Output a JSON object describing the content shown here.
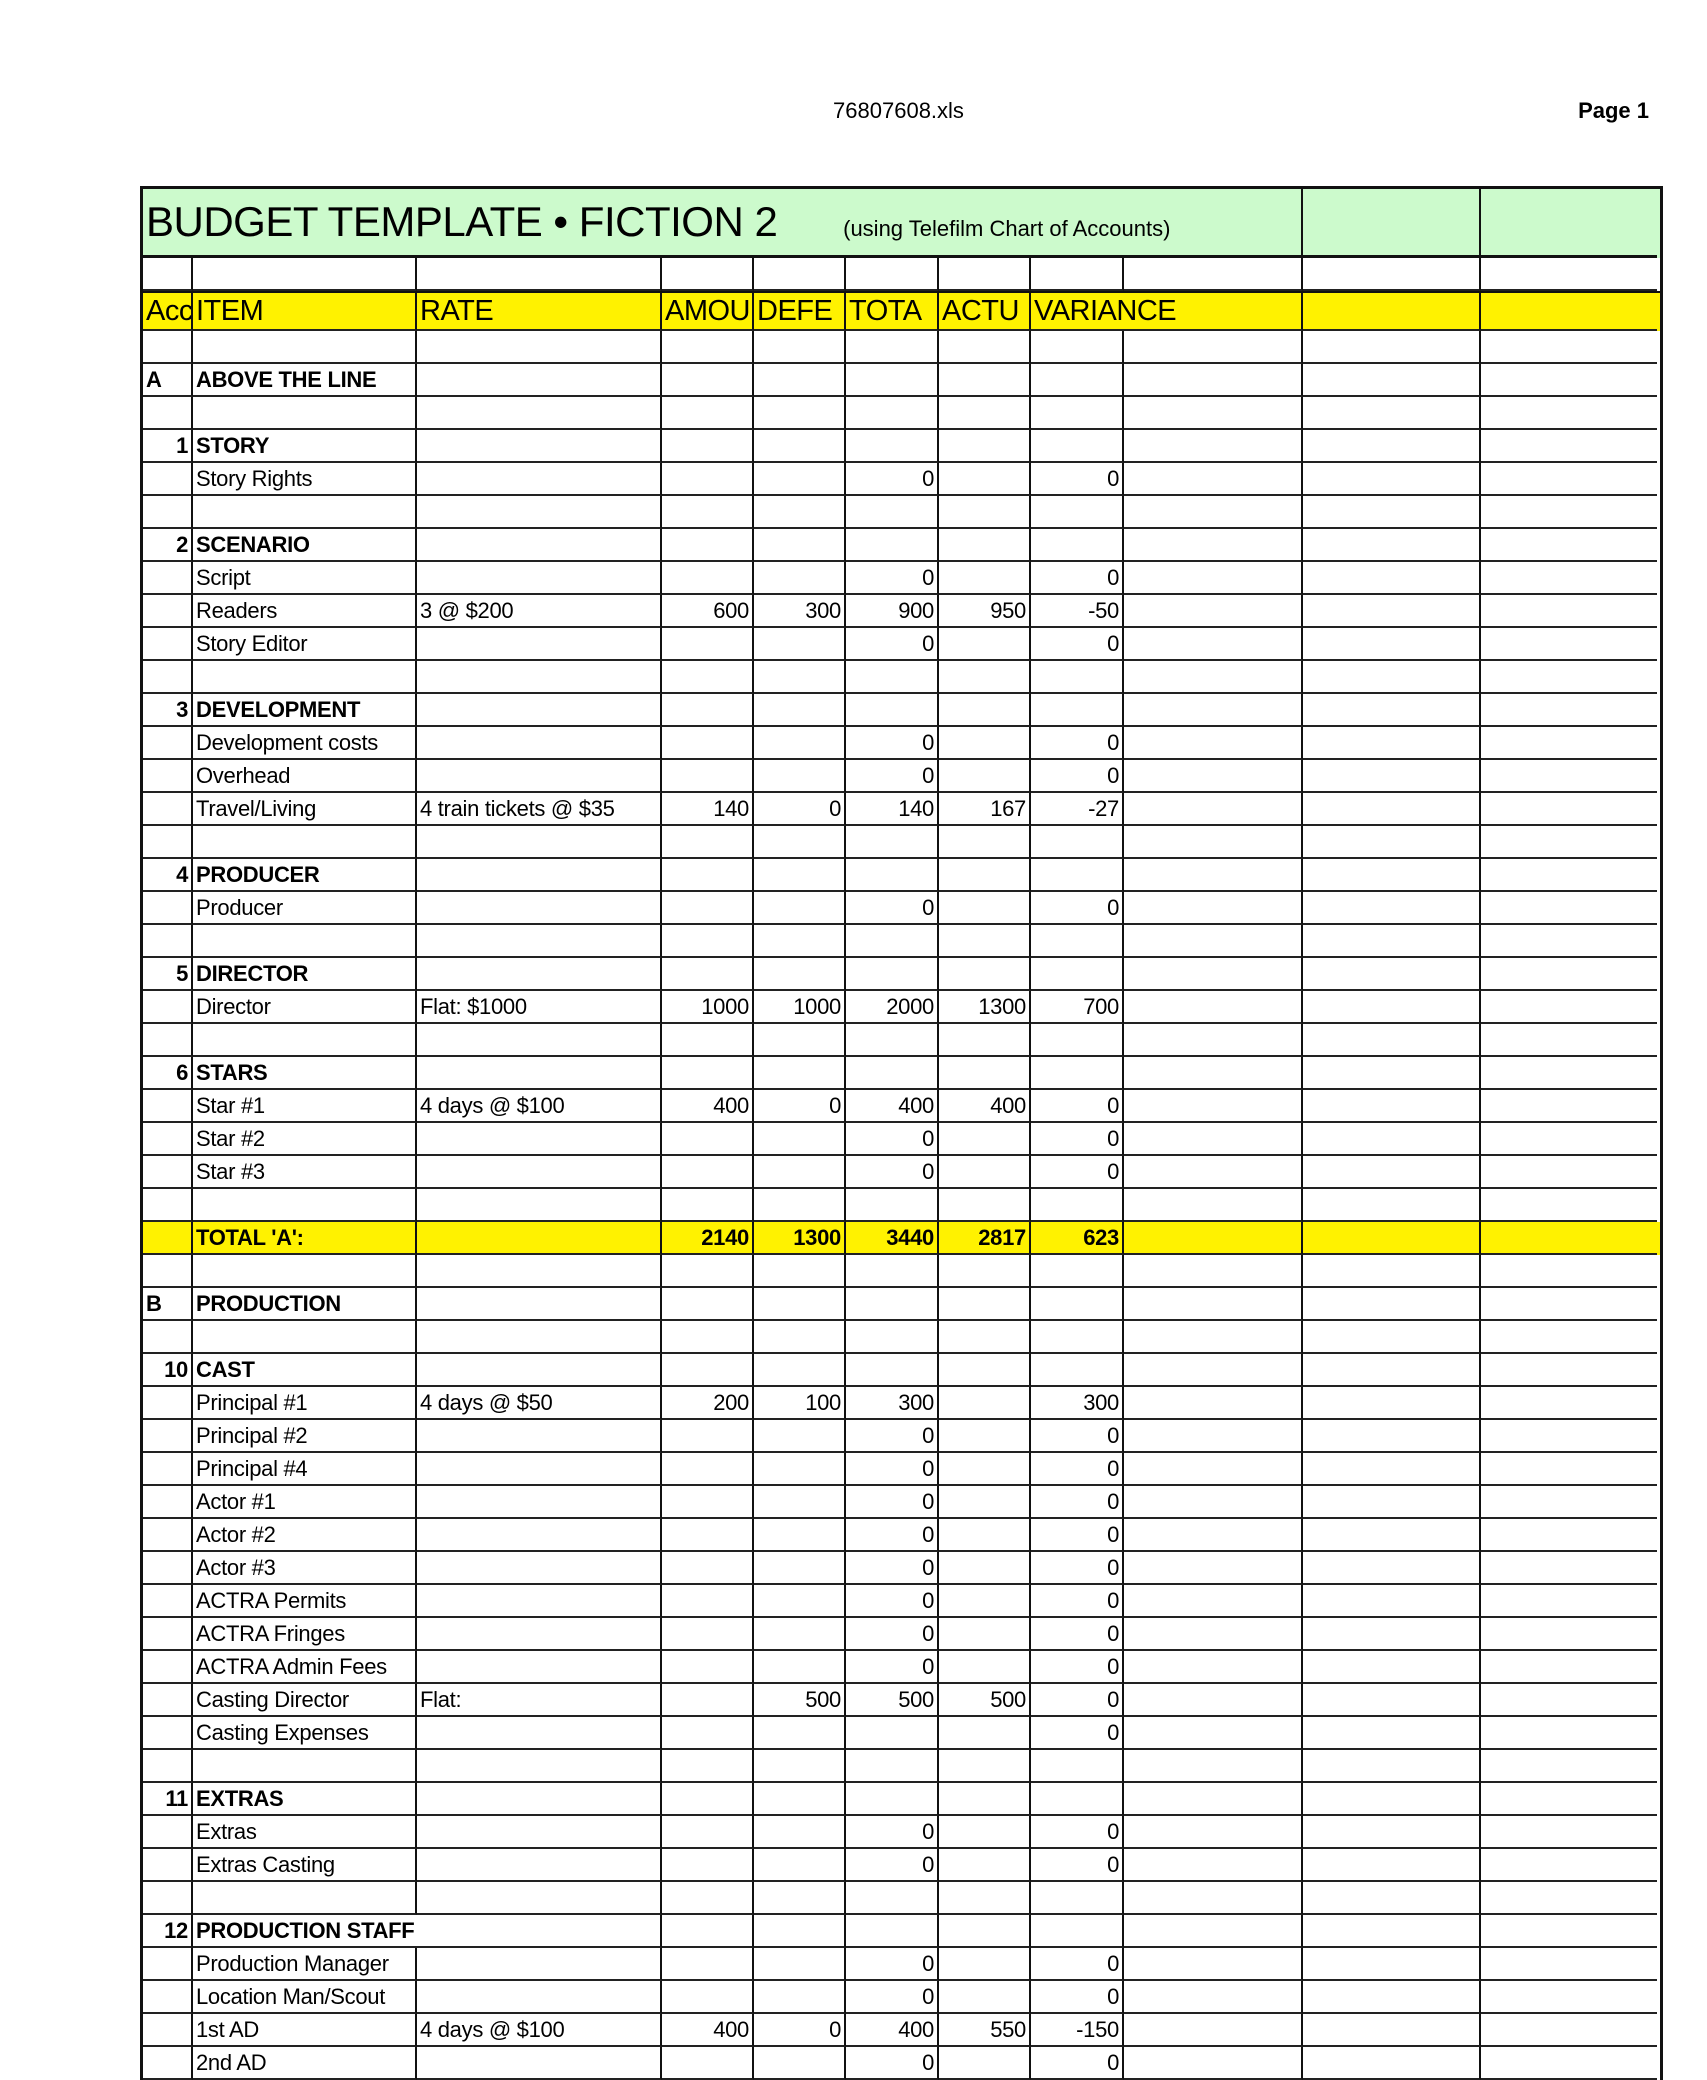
{
  "page_header": {
    "file_name": "76807608.xls",
    "page": "Page 1"
  },
  "sheet": {
    "title": "BUDGET TEMPLATE • FICTION 2",
    "subtitle": "(using Telefilm Chart of Accounts)",
    "colors": {
      "title_bg": "#ccfacc",
      "header_bg": "#fff200",
      "total_bg": "#fff200"
    },
    "columns": [
      "Acc",
      "ITEM",
      "RATE",
      "AMOU",
      "DEFE",
      "TOTA",
      "ACTU",
      "VARIANCE"
    ],
    "rows": [
      {
        "type": "blank"
      },
      {
        "type": "section",
        "acct": "A",
        "item": "ABOVE THE LINE"
      },
      {
        "type": "blank"
      },
      {
        "type": "heading",
        "acct": "1",
        "item": "STORY"
      },
      {
        "type": "line",
        "item": "Story Rights",
        "total": "0",
        "variance": "0"
      },
      {
        "type": "blank"
      },
      {
        "type": "heading",
        "acct": "2",
        "item": "SCENARIO"
      },
      {
        "type": "line",
        "item": "Script",
        "total": "0",
        "variance": "0"
      },
      {
        "type": "line",
        "item": "Readers",
        "rate": "3 @ $200",
        "amount": "600",
        "deferred": "300",
        "total": "900",
        "actual": "950",
        "variance": "-50"
      },
      {
        "type": "line",
        "item": "Story Editor",
        "total": "0",
        "variance": "0"
      },
      {
        "type": "blank"
      },
      {
        "type": "heading",
        "acct": "3",
        "item": "DEVELOPMENT"
      },
      {
        "type": "line",
        "item": "Development costs",
        "total": "0",
        "variance": "0"
      },
      {
        "type": "line",
        "item": "Overhead",
        "total": "0",
        "variance": "0"
      },
      {
        "type": "line",
        "item": "Travel/Living",
        "rate": "4 train tickets @ $35",
        "amount": "140",
        "deferred": "0",
        "total": "140",
        "actual": "167",
        "variance": "-27"
      },
      {
        "type": "blank"
      },
      {
        "type": "heading",
        "acct": "4",
        "item": "PRODUCER"
      },
      {
        "type": "line",
        "item": "Producer",
        "total": "0",
        "variance": "0"
      },
      {
        "type": "blank"
      },
      {
        "type": "heading",
        "acct": "5",
        "item": "DIRECTOR"
      },
      {
        "type": "line",
        "item": "Director",
        "rate": "Flat: $1000",
        "amount": "1000",
        "deferred": "1000",
        "total": "2000",
        "actual": "1300",
        "variance": "700"
      },
      {
        "type": "blank"
      },
      {
        "type": "heading",
        "acct": "6",
        "item": "STARS"
      },
      {
        "type": "line",
        "item": "Star #1",
        "rate": "4 days @ $100",
        "amount": "400",
        "deferred": "0",
        "total": "400",
        "actual": "400",
        "variance": "0"
      },
      {
        "type": "line",
        "item": "Star #2",
        "total": "0",
        "variance": "0"
      },
      {
        "type": "line",
        "item": "Star #3",
        "total": "0",
        "variance": "0"
      },
      {
        "type": "blank"
      },
      {
        "type": "total",
        "item": "TOTAL 'A':",
        "amount": "2140",
        "deferred": "1300",
        "total": "3440",
        "actual": "2817",
        "variance": "623"
      },
      {
        "type": "blank"
      },
      {
        "type": "section",
        "acct": "B",
        "item": "PRODUCTION"
      },
      {
        "type": "blank"
      },
      {
        "type": "heading",
        "acct": "10",
        "item": "CAST"
      },
      {
        "type": "line",
        "item": "Principal #1",
        "rate": "4 days @ $50",
        "amount": "200",
        "deferred": "100",
        "total": "300",
        "variance": "300"
      },
      {
        "type": "line",
        "item": "Principal #2",
        "total": "0",
        "variance": "0"
      },
      {
        "type": "line",
        "item": "Principal #4",
        "total": "0",
        "variance": "0"
      },
      {
        "type": "line",
        "item": "Actor #1",
        "total": "0",
        "variance": "0"
      },
      {
        "type": "line",
        "item": "Actor #2",
        "total": "0",
        "variance": "0"
      },
      {
        "type": "line",
        "item": "Actor #3",
        "total": "0",
        "variance": "0"
      },
      {
        "type": "line",
        "item": "ACTRA Permits",
        "total": "0",
        "variance": "0"
      },
      {
        "type": "line",
        "item": "ACTRA Fringes",
        "total": "0",
        "variance": "0"
      },
      {
        "type": "line",
        "item": "ACTRA Admin Fees",
        "total": "0",
        "variance": "0"
      },
      {
        "type": "line",
        "item": "Casting Director",
        "rate": "Flat:",
        "deferred": "500",
        "total": "500",
        "actual": "500",
        "variance": "0"
      },
      {
        "type": "line",
        "item": "Casting Expenses",
        "variance": "0"
      },
      {
        "type": "blank"
      },
      {
        "type": "heading",
        "acct": "11",
        "item": "EXTRAS"
      },
      {
        "type": "line",
        "item": "Extras",
        "total": "0",
        "variance": "0"
      },
      {
        "type": "line",
        "item": "Extras Casting",
        "total": "0",
        "variance": "0"
      },
      {
        "type": "blank"
      },
      {
        "type": "heading",
        "acct": "12",
        "item": "PRODUCTION STAFF"
      },
      {
        "type": "line",
        "item": "Production Manager",
        "total": "0",
        "variance": "0"
      },
      {
        "type": "line",
        "item": "Location Man/Scout",
        "total": "0",
        "variance": "0"
      },
      {
        "type": "line",
        "item": "1st AD",
        "rate": "4 days @ $100",
        "amount": "400",
        "deferred": "0",
        "total": "400",
        "actual": "550",
        "variance": "-150"
      },
      {
        "type": "line",
        "item": "2nd AD",
        "total": "0",
        "variance": "0"
      }
    ]
  }
}
